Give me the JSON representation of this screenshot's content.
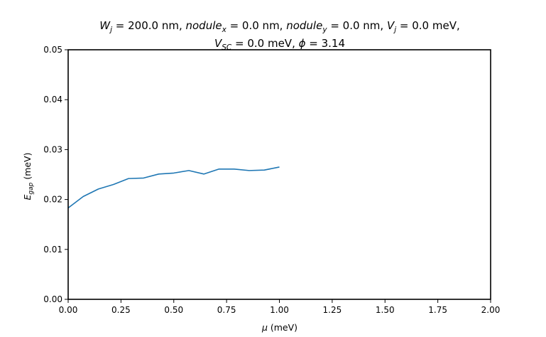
{
  "chart_data": {
    "type": "line",
    "title_line1": {
      "pre": "W",
      "sub": "j",
      "post": " = 200.0 nm, ",
      "n1": "nodule",
      "s1": "x",
      "m1": " = 0.0 nm, ",
      "n2": "nodule",
      "s2": "y",
      "m2": " = 0.0 nm, ",
      "v": "V",
      "vs": "j",
      "end": " = 0.0 meV,"
    },
    "title_line2": {
      "pre": "V",
      "sub": "SC",
      "mid": " = 0.0 meV, ",
      "phi": "ϕ",
      "end": " = 3.14"
    },
    "xlabel": {
      "sym": "μ",
      "unit": " (meV)"
    },
    "ylabel": {
      "sym": "E",
      "sub": "gap",
      "unit": " (meV)"
    },
    "xlim": [
      0,
      2
    ],
    "ylim": [
      0,
      0.05
    ],
    "xticks": [
      0,
      0.25,
      0.5,
      0.75,
      1.0,
      1.25,
      1.5,
      1.75,
      2.0
    ],
    "xtick_labels": [
      "0.00",
      "0.25",
      "0.50",
      "0.75",
      "1.00",
      "1.25",
      "1.50",
      "1.75",
      "2.00"
    ],
    "yticks": [
      0,
      0.01,
      0.02,
      0.03,
      0.04,
      0.05
    ],
    "ytick_labels": [
      "0.00",
      "0.01",
      "0.02",
      "0.03",
      "0.04",
      "0.05"
    ],
    "grid": false,
    "series": [
      {
        "color": "#1f77b4",
        "x": [
          0.0,
          0.0714,
          0.1429,
          0.2143,
          0.2857,
          0.3571,
          0.4286,
          0.5,
          0.5714,
          0.6429,
          0.7143,
          0.7857,
          0.8571,
          0.9286,
          1.0
        ],
        "y": [
          0.0183,
          0.0206,
          0.0221,
          0.023,
          0.0242,
          0.0243,
          0.0251,
          0.0253,
          0.0258,
          0.0251,
          0.0261,
          0.0261,
          0.0258,
          0.0259,
          0.0265
        ]
      }
    ]
  }
}
